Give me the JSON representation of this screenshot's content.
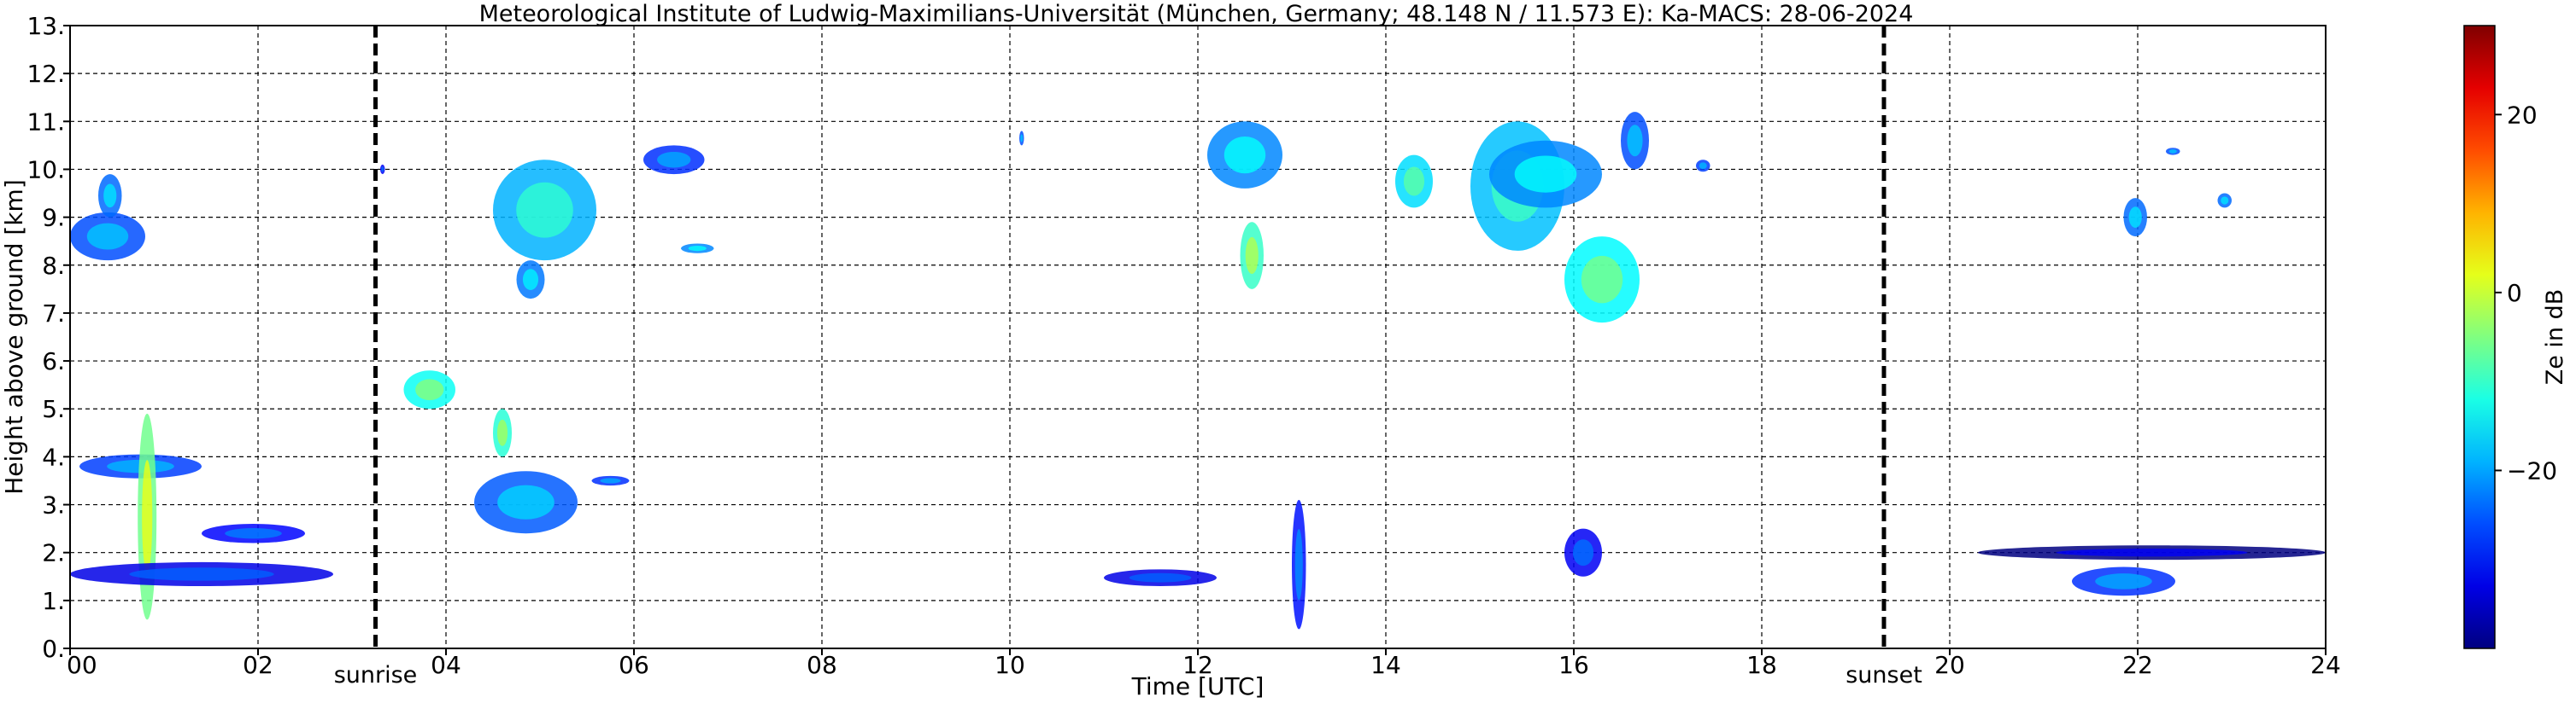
{
  "chart_data": {
    "type": "heatmap",
    "title": "Meteorological Institute of Ludwig-Maximilians-Universität (München, Germany; 48.148 N / 11.573 E):    Ka-MACS: 28-06-2024",
    "xlabel": "Time [UTC]",
    "ylabel": "Height above ground [km]",
    "xlim": [
      0,
      24
    ],
    "ylim": [
      0,
      13
    ],
    "grid": true,
    "x_ticks": [
      0,
      2,
      4,
      6,
      8,
      10,
      12,
      14,
      16,
      18,
      20,
      22,
      24
    ],
    "x_tick_labels": [
      "00",
      "02",
      "04",
      "06",
      "08",
      "10",
      "12",
      "14",
      "16",
      "18",
      "20",
      "22",
      "24"
    ],
    "y_ticks": [
      0,
      1,
      2,
      3,
      4,
      5,
      6,
      7,
      8,
      9,
      10,
      11,
      12,
      13
    ],
    "y_tick_labels": [
      "0.",
      "1.",
      "2.",
      "3.",
      "4.",
      "5.",
      "6.",
      "7.",
      "8.",
      "9.",
      "10.",
      "11.",
      "12.",
      "13."
    ],
    "events": [
      {
        "label": "sunrise",
        "time": 3.25
      },
      {
        "label": "sunset",
        "time": 19.3
      }
    ],
    "colorbar": {
      "label": "Ze in dB",
      "range": [
        -40,
        30
      ],
      "ticks": [
        20,
        0,
        -20
      ],
      "tick_labels": [
        "20",
        "0",
        "−20"
      ],
      "colormap": "jet"
    },
    "cells": [
      {
        "t0": 0.0,
        "t1": 0.8,
        "h0": 8.1,
        "h1": 9.1,
        "ze": -26
      },
      {
        "t0": 0.3,
        "t1": 0.55,
        "h0": 9.0,
        "h1": 9.9,
        "ze": -24
      },
      {
        "t0": 0.1,
        "t1": 1.4,
        "h0": 3.55,
        "h1": 4.05,
        "ze": -27
      },
      {
        "t0": 0.72,
        "t1": 0.92,
        "h0": 0.6,
        "h1": 4.9,
        "ze": -6
      },
      {
        "t0": 0.0,
        "t1": 2.8,
        "h0": 1.3,
        "h1": 1.8,
        "ze": -33
      },
      {
        "t0": 1.4,
        "t1": 2.5,
        "h0": 2.2,
        "h1": 2.6,
        "ze": -31
      },
      {
        "t0": 3.3,
        "t1": 3.35,
        "h0": 9.9,
        "h1": 10.1,
        "ze": -32
      },
      {
        "t0": 3.55,
        "t1": 4.1,
        "h0": 5.0,
        "h1": 5.8,
        "ze": -13
      },
      {
        "t0": 4.5,
        "t1": 4.7,
        "h0": 4.0,
        "h1": 5.0,
        "ze": -11
      },
      {
        "t0": 4.3,
        "t1": 5.4,
        "h0": 2.4,
        "h1": 3.7,
        "ze": -25
      },
      {
        "t0": 5.55,
        "t1": 5.95,
        "h0": 3.4,
        "h1": 3.6,
        "ze": -28
      },
      {
        "t0": 4.5,
        "t1": 5.6,
        "h0": 8.1,
        "h1": 10.2,
        "ze": -19
      },
      {
        "t0": 4.75,
        "t1": 5.05,
        "h0": 7.3,
        "h1": 8.1,
        "ze": -23
      },
      {
        "t0": 6.1,
        "t1": 6.75,
        "h0": 9.9,
        "h1": 10.5,
        "ze": -28
      },
      {
        "t0": 6.5,
        "t1": 6.85,
        "h0": 8.25,
        "h1": 8.45,
        "ze": -22
      },
      {
        "t0": 12.1,
        "t1": 12.9,
        "h0": 9.6,
        "h1": 11.0,
        "ze": -22
      },
      {
        "t0": 12.45,
        "t1": 12.7,
        "h0": 7.5,
        "h1": 8.9,
        "ze": -10
      },
      {
        "t0": 11.0,
        "t1": 12.2,
        "h0": 1.3,
        "h1": 1.65,
        "ze": -33
      },
      {
        "t0": 13.0,
        "t1": 13.15,
        "h0": 0.4,
        "h1": 3.1,
        "ze": -30
      },
      {
        "t0": 14.1,
        "t1": 14.5,
        "h0": 9.2,
        "h1": 10.3,
        "ze": -16
      },
      {
        "t0": 14.9,
        "t1": 15.9,
        "h0": 8.3,
        "h1": 11.0,
        "ze": -18
      },
      {
        "t0": 15.1,
        "t1": 16.3,
        "h0": 9.2,
        "h1": 10.6,
        "ze": -22
      },
      {
        "t0": 15.9,
        "t1": 16.7,
        "h0": 6.8,
        "h1": 8.6,
        "ze": -14
      },
      {
        "t0": 16.5,
        "t1": 16.8,
        "h0": 10.0,
        "h1": 11.2,
        "ze": -26
      },
      {
        "t0": 17.3,
        "t1": 17.45,
        "h0": 9.95,
        "h1": 10.2,
        "ze": -27
      },
      {
        "t0": 15.9,
        "t1": 16.3,
        "h0": 1.5,
        "h1": 2.5,
        "ze": -32
      },
      {
        "t0": 21.85,
        "t1": 22.1,
        "h0": 8.6,
        "h1": 9.4,
        "ze": -24
      },
      {
        "t0": 22.3,
        "t1": 22.45,
        "h0": 10.3,
        "h1": 10.45,
        "ze": -26
      },
      {
        "t0": 22.85,
        "t1": 23.0,
        "h0": 9.2,
        "h1": 9.5,
        "ze": -24
      },
      {
        "t0": 20.3,
        "t1": 24.0,
        "h0": 1.85,
        "h1": 2.15,
        "ze": -40
      },
      {
        "t0": 21.3,
        "t1": 22.4,
        "h0": 1.1,
        "h1": 1.7,
        "ze": -28
      },
      {
        "t0": 10.1,
        "t1": 10.15,
        "h0": 10.5,
        "h1": 10.8,
        "ze": -26
      }
    ]
  }
}
